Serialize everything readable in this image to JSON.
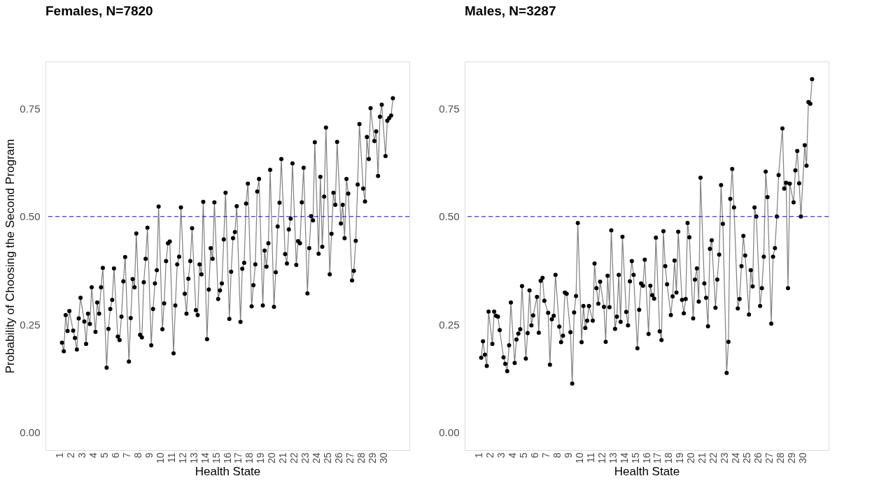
{
  "chart_data": [
    {
      "type": "line",
      "title": "Females, N=7820",
      "xlabel": "Health State",
      "ylabel": "Probability of Choosing the Second Program",
      "marker": "circle",
      "line_style": "solid",
      "grid": false,
      "x": [
        1.17,
        1.33,
        1.5,
        1.67,
        1.83,
        2.17,
        2.33,
        2.5,
        2.67,
        2.83,
        3.17,
        3.33,
        3.5,
        3.67,
        3.83,
        4.17,
        4.33,
        4.5,
        4.67,
        4.83,
        5.17,
        5.33,
        5.5,
        5.67,
        5.83,
        6.17,
        6.33,
        6.5,
        6.67,
        6.83,
        7.17,
        7.33,
        7.5,
        7.67,
        7.83,
        8.17,
        8.33,
        8.5,
        8.67,
        8.83,
        9.17,
        9.33,
        9.5,
        9.67,
        9.83,
        10.17,
        10.33,
        10.5,
        10.67,
        10.83,
        11.17,
        11.33,
        11.5,
        11.67,
        11.83,
        12.17,
        12.33,
        12.5,
        12.67,
        12.83,
        13.17,
        13.33,
        13.5,
        13.67,
        13.83,
        14.17,
        14.33,
        14.5,
        14.67,
        14.83,
        15.17,
        15.33,
        15.5,
        15.67,
        15.83,
        16.17,
        16.33,
        16.5,
        16.67,
        16.83,
        17.17,
        17.33,
        17.5,
        17.67,
        17.83,
        18.17,
        18.33,
        18.5,
        18.67,
        18.83,
        19.17,
        19.33,
        19.5,
        19.67,
        19.83,
        20.17,
        20.33,
        20.5,
        20.67,
        20.83,
        21.17,
        21.33,
        21.5,
        21.67,
        21.83,
        22.17,
        22.33,
        22.5,
        22.67,
        22.83,
        23.17,
        23.33,
        23.5,
        23.67,
        23.83,
        24.17,
        24.33,
        24.5,
        24.67,
        24.83,
        25.17,
        25.33,
        25.5,
        25.67,
        25.83,
        26.17,
        26.33,
        26.5,
        26.67,
        26.83,
        27.17,
        27.33,
        27.5,
        27.67,
        27.83,
        28.17,
        28.33,
        28.5,
        28.67,
        28.83,
        29.17,
        29.33,
        29.5,
        29.67,
        29.83,
        30.17,
        30.33,
        30.5,
        30.67,
        30.83
      ],
      "series": [
        {
          "color": "#000000",
          "values": [
            0.208,
            0.188,
            0.272,
            0.235,
            0.281,
            0.236,
            0.219,
            0.192,
            0.264,
            0.312,
            0.257,
            0.205,
            0.275,
            0.251,
            0.336,
            0.233,
            0.301,
            0.275,
            0.336,
            0.381,
            0.15,
            0.24,
            0.286,
            0.307,
            0.38,
            0.222,
            0.214,
            0.268,
            0.35,
            0.406,
            0.164,
            0.265,
            0.355,
            0.336,
            0.461,
            0.226,
            0.22,
            0.348,
            0.402,
            0.474,
            0.202,
            0.286,
            0.345,
            0.376,
            0.523,
            0.239,
            0.299,
            0.397,
            0.438,
            0.442,
            0.183,
            0.294,
            0.389,
            0.407,
            0.521,
            0.321,
            0.275,
            0.356,
            0.397,
            0.473,
            0.283,
            0.272,
            0.389,
            0.366,
            0.534,
            0.216,
            0.331,
            0.427,
            0.402,
            0.533,
            0.309,
            0.329,
            0.345,
            0.447,
            0.555,
            0.263,
            0.372,
            0.45,
            0.464,
            0.524,
            0.256,
            0.379,
            0.393,
            0.53,
            0.576,
            0.292,
            0.341,
            0.389,
            0.558,
            0.587,
            0.294,
            0.421,
            0.384,
            0.438,
            0.608,
            0.291,
            0.371,
            0.477,
            0.532,
            0.633,
            0.413,
            0.391,
            0.47,
            0.495,
            0.623,
            0.388,
            0.443,
            0.438,
            0.533,
            0.613,
            0.322,
            0.427,
            0.501,
            0.491,
            0.672,
            0.414,
            0.592,
            0.43,
            0.546,
            0.706,
            0.366,
            0.46,
            0.555,
            0.527,
            0.673,
            0.484,
            0.527,
            0.45,
            0.587,
            0.553,
            0.352,
            0.374,
            0.444,
            0.574,
            0.714,
            0.565,
            0.535,
            0.684,
            0.633,
            0.751,
            0.675,
            0.697,
            0.594,
            0.731,
            0.759,
            0.64,
            0.722,
            0.728,
            0.734,
            0.774
          ]
        }
      ],
      "xlim": [
        -0.31,
        32.31
      ],
      "ylim": [
        -0.041,
        0.859
      ],
      "xticks": [
        1,
        2,
        3,
        4,
        5,
        6,
        7,
        8,
        9,
        10,
        11,
        12,
        13,
        14,
        15,
        16,
        17,
        18,
        19,
        20,
        21,
        22,
        23,
        24,
        25,
        26,
        27,
        28,
        29,
        30
      ],
      "yticks": [
        {
          "value": 0,
          "label": "0.00"
        },
        {
          "value": 0.25,
          "label": "0.25"
        },
        {
          "value": 0.5,
          "label": "0.50"
        },
        {
          "value": 0.75,
          "label": "0.75"
        }
      ],
      "ref_lines": [
        {
          "axis": "y",
          "value": 0.5,
          "color": "#0000ff",
          "line_style": "dashed"
        }
      ]
    },
    {
      "type": "line",
      "title": "Males, N=3287",
      "xlabel": "Health State",
      "marker": "circle",
      "line_style": "solid",
      "grid": false,
      "x": [
        1.17,
        1.33,
        1.5,
        1.67,
        1.83,
        2.17,
        2.33,
        2.5,
        2.67,
        2.83,
        3.17,
        3.33,
        3.5,
        3.67,
        3.83,
        4.17,
        4.33,
        4.5,
        4.67,
        4.83,
        5.17,
        5.33,
        5.5,
        5.67,
        5.83,
        6.17,
        6.33,
        6.5,
        6.67,
        6.83,
        7.17,
        7.33,
        7.5,
        7.67,
        7.83,
        8.17,
        8.33,
        8.5,
        8.67,
        8.83,
        9.17,
        9.33,
        9.5,
        9.67,
        9.83,
        10.17,
        10.33,
        10.5,
        10.67,
        10.83,
        11.17,
        11.33,
        11.5,
        11.67,
        11.83,
        12.17,
        12.33,
        12.5,
        12.67,
        12.83,
        13.17,
        13.33,
        13.5,
        13.67,
        13.83,
        14.17,
        14.33,
        14.5,
        14.67,
        14.83,
        15.17,
        15.33,
        15.5,
        15.67,
        15.83,
        16.17,
        16.33,
        16.5,
        16.67,
        16.83,
        17.17,
        17.33,
        17.5,
        17.67,
        17.83,
        18.17,
        18.33,
        18.5,
        18.67,
        18.83,
        19.17,
        19.33,
        19.5,
        19.67,
        19.83,
        20.17,
        20.33,
        20.5,
        20.67,
        20.83,
        21.17,
        21.33,
        21.5,
        21.67,
        21.83,
        22.17,
        22.33,
        22.5,
        22.67,
        22.83,
        23.17,
        23.33,
        23.5,
        23.67,
        23.83,
        24.17,
        24.33,
        24.5,
        24.67,
        24.83,
        25.17,
        25.33,
        25.5,
        25.67,
        25.83,
        26.17,
        26.33,
        26.5,
        26.67,
        26.83,
        27.17,
        27.33,
        27.5,
        27.67,
        27.83,
        28.17,
        28.33,
        28.5,
        28.67,
        28.83,
        29.17,
        29.33,
        29.5,
        29.67,
        29.83,
        30.17,
        30.33,
        30.5,
        30.67,
        30.83
      ],
      "series": [
        {
          "color": "#000000",
          "values": [
            0.173,
            0.211,
            0.18,
            0.154,
            0.28,
            0.205,
            0.28,
            0.27,
            0.268,
            0.237,
            0.174,
            0.159,
            0.142,
            0.202,
            0.301,
            0.161,
            0.215,
            0.229,
            0.239,
            0.339,
            0.171,
            0.23,
            0.329,
            0.248,
            0.271,
            0.314,
            0.231,
            0.351,
            0.358,
            0.305,
            0.277,
            0.157,
            0.262,
            0.27,
            0.365,
            0.245,
            0.209,
            0.224,
            0.324,
            0.321,
            0.232,
            0.113,
            0.278,
            0.316,
            0.485,
            0.209,
            0.293,
            0.242,
            0.259,
            0.293,
            0.259,
            0.391,
            0.334,
            0.298,
            0.349,
            0.291,
            0.21,
            0.363,
            0.29,
            0.468,
            0.24,
            0.268,
            0.365,
            0.256,
            0.453,
            0.279,
            0.248,
            0.35,
            0.397,
            0.365,
            0.195,
            0.284,
            0.345,
            0.34,
            0.4,
            0.228,
            0.34,
            0.318,
            0.31,
            0.451,
            0.234,
            0.214,
            0.466,
            0.385,
            0.343,
            0.272,
            0.315,
            0.398,
            0.324,
            0.465,
            0.307,
            0.276,
            0.309,
            0.485,
            0.452,
            0.264,
            0.354,
            0.38,
            0.303,
            0.59,
            0.345,
            0.312,
            0.246,
            0.425,
            0.445,
            0.289,
            0.354,
            0.412,
            0.573,
            0.483,
            0.138,
            0.21,
            0.541,
            0.61,
            0.521,
            0.287,
            0.309,
            0.385,
            0.455,
            0.41,
            0.273,
            0.376,
            0.338,
            0.521,
            0.5,
            0.293,
            0.334,
            0.407,
            0.604,
            0.545,
            0.252,
            0.407,
            0.427,
            0.5,
            0.596,
            0.704,
            0.565,
            0.578,
            0.334,
            0.576,
            0.533,
            0.607,
            0.652,
            0.577,
            0.5,
            0.665,
            0.618,
            0.765,
            0.761,
            0.818
          ]
        }
      ],
      "xlim": [
        -0.31,
        32.31
      ],
      "ylim": [
        -0.041,
        0.859
      ],
      "xticks": [
        1,
        2,
        3,
        4,
        5,
        6,
        7,
        8,
        9,
        10,
        11,
        12,
        13,
        14,
        15,
        16,
        17,
        18,
        19,
        20,
        21,
        22,
        23,
        24,
        25,
        26,
        27,
        28,
        29,
        30
      ],
      "yticks": [
        {
          "value": 0,
          "label": "0.00"
        },
        {
          "value": 0.25,
          "label": "0.25"
        },
        {
          "value": 0.5,
          "label": "0.50"
        },
        {
          "value": 0.75,
          "label": "0.75"
        }
      ],
      "ref_lines": [
        {
          "axis": "y",
          "value": 0.5,
          "color": "#0000ff",
          "line_style": "dashed"
        }
      ]
    }
  ]
}
